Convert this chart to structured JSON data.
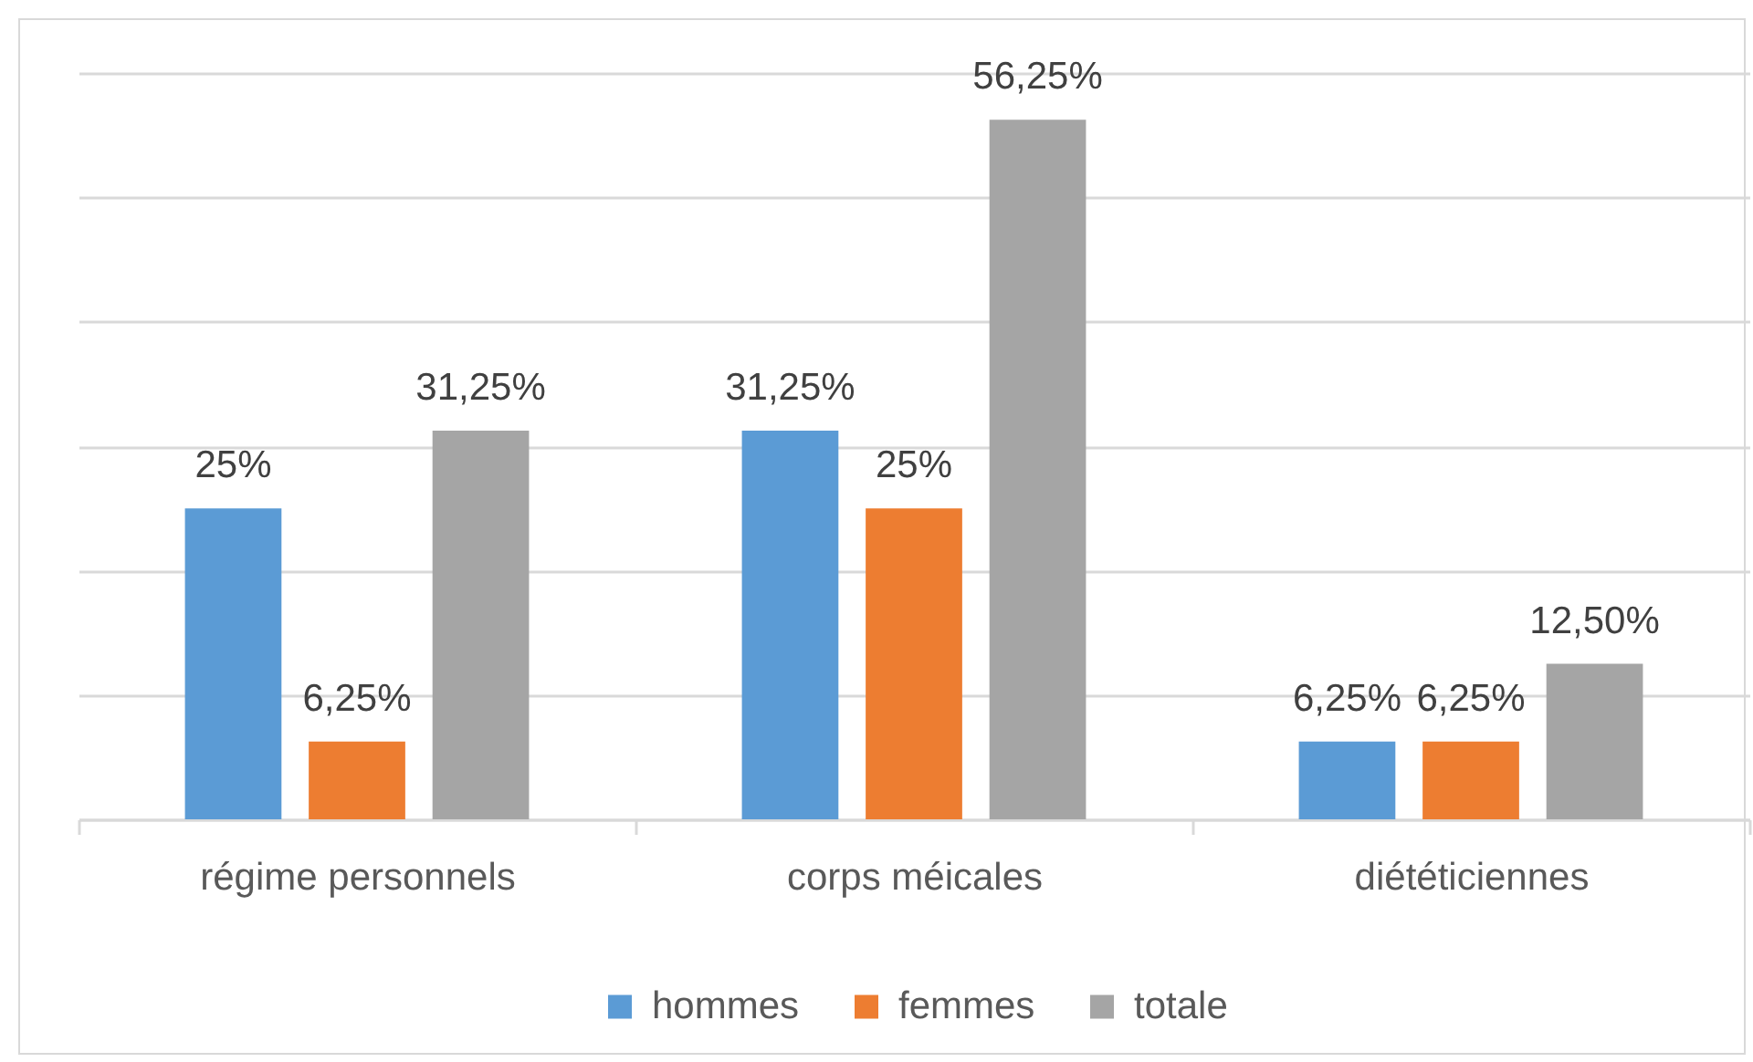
{
  "chart_data": {
    "type": "bar",
    "categories": [
      "régime personnels",
      "corps méicales",
      "diététiciennes"
    ],
    "series": [
      {
        "name": "hommes",
        "color": "#5b9bd5",
        "values": [
          25,
          31.25,
          6.25
        ],
        "value_labels": [
          "25%",
          "31,25%",
          "6,25%"
        ]
      },
      {
        "name": "femmes",
        "color": "#ed7d31",
        "values": [
          6.25,
          25,
          6.25
        ],
        "value_labels": [
          "6,25%",
          "25%",
          "6,25%"
        ]
      },
      {
        "name": "totale",
        "color": "#a5a5a5",
        "values": [
          31.25,
          56.25,
          12.5
        ],
        "value_labels": [
          "31,25%",
          "56,25%",
          "12,50%"
        ]
      }
    ],
    "ylim": [
      0,
      60
    ],
    "yticks": [
      {
        "value": 0,
        "label": null
      },
      {
        "value": 10,
        "label": null
      },
      {
        "value": 20,
        "label": null
      },
      {
        "value": 30,
        "label": null
      },
      {
        "value": 40,
        "label": null
      },
      {
        "value": 50,
        "label": null
      },
      {
        "value": 60,
        "label": null
      }
    ],
    "grid": "y",
    "legend": "bottom",
    "tick_labels": "x"
  }
}
